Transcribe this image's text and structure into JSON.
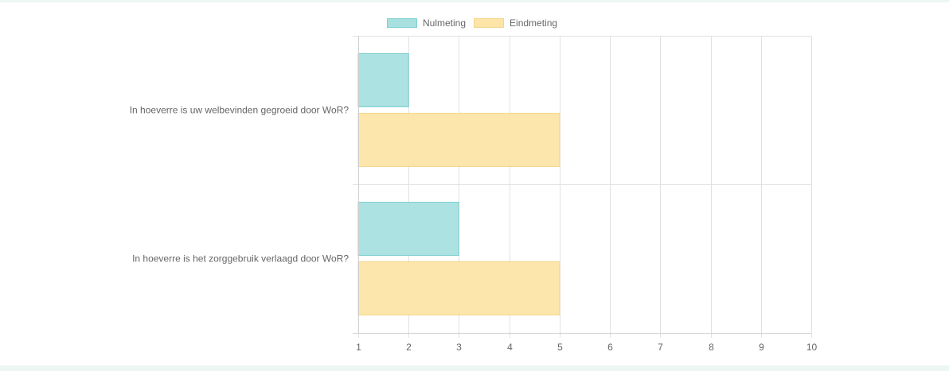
{
  "chart_data": {
    "type": "bar",
    "orientation": "horizontal",
    "categories": [
      "In hoeverre is uw welbevinden gegroeid door WoR?",
      "In hoeverre is het zorggebruik  verlaagd door WoR?"
    ],
    "series": [
      {
        "name": "Nulmeting",
        "values": [
          2,
          3
        ],
        "fill": "#a8e0e0",
        "stroke": "#7fcfcf"
      },
      {
        "name": "Eindmeting",
        "values": [
          5,
          5
        ],
        "fill": "#fde5a8",
        "stroke": "#f5d58a"
      }
    ],
    "xlim": [
      1,
      10
    ],
    "xticks": [
      1,
      2,
      3,
      4,
      5,
      6,
      7,
      8,
      9,
      10
    ],
    "grid": true,
    "legend": "top"
  }
}
